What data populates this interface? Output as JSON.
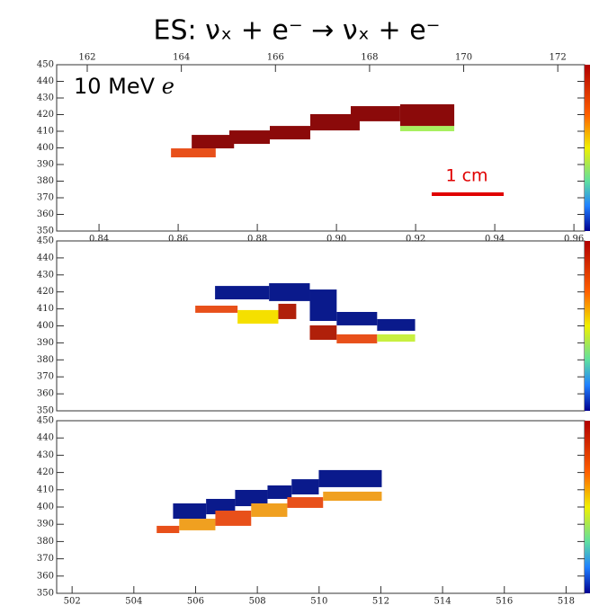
{
  "chart_data": [
    {
      "type": "heatmap",
      "title": "ES: νₓ + e⁻ → νₓ + e⁻",
      "annotation": "10 MeV",
      "annotation_particle": "e",
      "scale_label": "1 cm",
      "xlim": [
        161.35,
        172.57
      ],
      "xticks": [
        162,
        164,
        166,
        168,
        170,
        172
      ],
      "x2lim": [
        0.8293,
        0.9627
      ],
      "x2ticks": [
        0.84,
        0.86,
        0.88,
        {
          "value": 0.9,
          "label": "0.90"
        },
        0.92,
        0.94,
        0.96
      ],
      "ylim": [
        350,
        450
      ],
      "yticks": [
        350,
        360,
        370,
        380,
        390,
        400,
        410,
        420,
        430,
        440,
        450
      ],
      "hits": [
        {
          "x": [
            163.78,
            164.73
          ],
          "y": [
            394.3,
            399.7
          ],
          "color": "#e8501a"
        },
        {
          "x": [
            164.22,
            165.12
          ],
          "y": [
            399.7,
            407.8
          ],
          "color": "#8b0a0a"
        },
        {
          "x": [
            165.02,
            165.88
          ],
          "y": [
            402.4,
            410.5
          ],
          "color": "#8b0a0a"
        },
        {
          "x": [
            165.88,
            166.74
          ],
          "y": [
            405.1,
            413.2
          ],
          "color": "#8b0a0a"
        },
        {
          "x": [
            166.74,
            167.79
          ],
          "y": [
            410.5,
            420.3
          ],
          "color": "#8b0a0a"
        },
        {
          "x": [
            167.6,
            168.65
          ],
          "y": [
            416.0,
            425.1
          ],
          "color": "#8b0a0a"
        },
        {
          "x": [
            168.65,
            169.8
          ],
          "y": [
            410.0,
            413.2
          ],
          "color": "#a8f060"
        },
        {
          "x": [
            168.65,
            169.8
          ],
          "y": [
            413.2,
            426.2
          ],
          "color": "#8b0a0a"
        }
      ]
    },
    {
      "type": "heatmap",
      "xlim": [
        501.5,
        518.6
      ],
      "ylim": [
        350,
        450
      ],
      "yticks": [
        350,
        360,
        370,
        380,
        390,
        400,
        410,
        420,
        430,
        440,
        450
      ],
      "hits": [
        {
          "x": [
            506.63,
            508.38
          ],
          "y": [
            415.6,
            423.5
          ],
          "color": "#0a1a8c"
        },
        {
          "x": [
            508.38,
            509.7
          ],
          "y": [
            414.6,
            425.1
          ],
          "color": "#0a1a8c"
        },
        {
          "x": [
            509.7,
            510.57
          ],
          "y": [
            402.9,
            421.4
          ],
          "color": "#0a1a8c"
        },
        {
          "x": [
            510.57,
            511.88
          ],
          "y": [
            400.3,
            408.2
          ],
          "color": "#0a1a8c"
        },
        {
          "x": [
            511.88,
            513.11
          ],
          "y": [
            397.1,
            404.0
          ],
          "color": "#0a1a8c"
        },
        {
          "x": [
            505.99,
            507.36
          ],
          "y": [
            407.7,
            411.9
          ],
          "color": "#e8501a"
        },
        {
          "x": [
            507.36,
            508.68
          ],
          "y": [
            401.3,
            409.3
          ],
          "color": "#f5e000"
        },
        {
          "x": [
            508.68,
            509.26
          ],
          "y": [
            404.0,
            413.0
          ],
          "color": "#b0200a"
        },
        {
          "x": [
            509.7,
            510.57
          ],
          "y": [
            391.8,
            400.3
          ],
          "color": "#b0200a"
        },
        {
          "x": [
            510.57,
            511.88
          ],
          "y": [
            389.7,
            395.0
          ],
          "color": "#e8501a"
        },
        {
          "x": [
            511.88,
            513.11
          ],
          "y": [
            390.7,
            395.0
          ],
          "color": "#c8f040"
        }
      ]
    },
    {
      "type": "heatmap",
      "xlim": [
        501.5,
        518.6
      ],
      "xticks": [
        502,
        504,
        506,
        508,
        510,
        512,
        514,
        516,
        518
      ],
      "ylim": [
        350,
        450
      ],
      "yticks": [
        350,
        360,
        370,
        380,
        390,
        400,
        410,
        420,
        430,
        440,
        450
      ],
      "hits": [
        {
          "x": [
            505.27,
            506.34
          ],
          "y": [
            393.2,
            402.1
          ],
          "color": "#0a1a8c"
        },
        {
          "x": [
            506.34,
            507.28
          ],
          "y": [
            395.8,
            404.7
          ],
          "color": "#0a1a8c"
        },
        {
          "x": [
            507.28,
            508.33
          ],
          "y": [
            400.5,
            409.9
          ],
          "color": "#0a1a8c"
        },
        {
          "x": [
            508.33,
            509.11
          ],
          "y": [
            404.7,
            412.5
          ],
          "color": "#0a1a8c"
        },
        {
          "x": [
            509.11,
            509.99
          ],
          "y": [
            407.3,
            416.1
          ],
          "color": "#0a1a8c"
        },
        {
          "x": [
            509.99,
            512.03
          ],
          "y": [
            411.5,
            421.4
          ],
          "color": "#0a1a8c"
        },
        {
          "x": [
            504.74,
            505.47
          ],
          "y": [
            384.9,
            389.1
          ],
          "color": "#e8501a"
        },
        {
          "x": [
            505.47,
            506.64
          ],
          "y": [
            386.5,
            393.2
          ],
          "color": "#f0a020"
        },
        {
          "x": [
            506.64,
            507.8
          ],
          "y": [
            389.1,
            397.9
          ],
          "color": "#e8501a"
        },
        {
          "x": [
            507.8,
            508.97
          ],
          "y": [
            394.3,
            402.1
          ],
          "color": "#f0a020"
        },
        {
          "x": [
            508.97,
            510.13
          ],
          "y": [
            399.5,
            405.7
          ],
          "color": "#e8501a"
        },
        {
          "x": [
            510.13,
            512.03
          ],
          "y": [
            403.6,
            408.9
          ],
          "color": "#f0a020"
        }
      ]
    }
  ]
}
